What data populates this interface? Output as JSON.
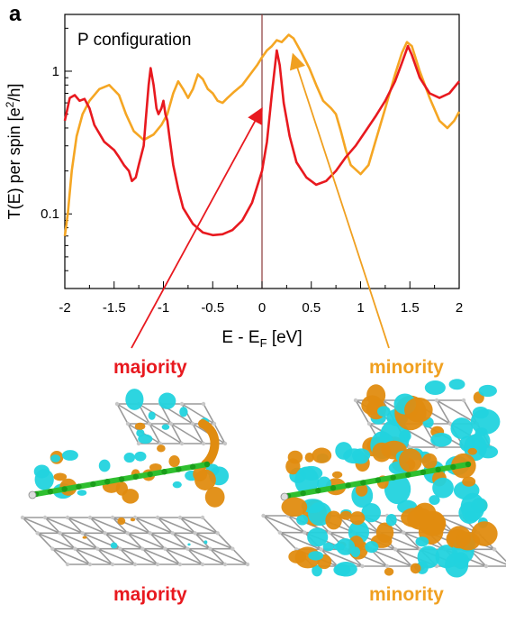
{
  "panel_label": "a",
  "colors": {
    "majority": "#e8191f",
    "minority": "#f5a623",
    "orbital_cyan": "#22d3de",
    "orbital_orange": "#e08c10",
    "atom_gray": "#c8c8c8",
    "carbon_green": "#2fbf2f"
  },
  "labels": {
    "majority_top": "majority",
    "minority_top": "minority",
    "majority_bottom": "majority",
    "minority_bottom": "minority"
  },
  "chart_data": {
    "type": "line",
    "title": "",
    "annotation": "P configuration",
    "xlabel": "E - E",
    "xlabel_sub": "F",
    "xlabel_unit": " [eV]",
    "ylabel": "T(E) per spin [e",
    "ylabel_sup": "2",
    "ylabel_unit": "/h]",
    "x_ticks": [
      -2,
      -1.5,
      -1,
      -0.5,
      0,
      0.5,
      1,
      1.5,
      2
    ],
    "x_tick_labels": [
      "-2",
      "-1.5",
      "-1",
      "-0.5",
      "0",
      "0.5",
      "1",
      "1.5",
      "2"
    ],
    "y_ticks": [
      0.1,
      1
    ],
    "y_tick_labels": [
      "0.1",
      "1"
    ],
    "xlim": [
      -2,
      2
    ],
    "ylim": [
      0.03,
      2.5
    ],
    "yscale": "log",
    "vline_x": 0,
    "series": [
      {
        "name": "majority",
        "points": [
          [
            -2.0,
            0.45
          ],
          [
            -1.95,
            0.65
          ],
          [
            -1.9,
            0.68
          ],
          [
            -1.85,
            0.62
          ],
          [
            -1.8,
            0.64
          ],
          [
            -1.75,
            0.55
          ],
          [
            -1.7,
            0.42
          ],
          [
            -1.6,
            0.32
          ],
          [
            -1.5,
            0.28
          ],
          [
            -1.45,
            0.25
          ],
          [
            -1.4,
            0.22
          ],
          [
            -1.35,
            0.2
          ],
          [
            -1.32,
            0.17
          ],
          [
            -1.28,
            0.18
          ],
          [
            -1.25,
            0.22
          ],
          [
            -1.2,
            0.3
          ],
          [
            -1.18,
            0.45
          ],
          [
            -1.15,
            0.8
          ],
          [
            -1.13,
            1.05
          ],
          [
            -1.1,
            0.8
          ],
          [
            -1.07,
            0.55
          ],
          [
            -1.05,
            0.5
          ],
          [
            -1.02,
            0.55
          ],
          [
            -1.0,
            0.62
          ],
          [
            -0.98,
            0.5
          ],
          [
            -0.96,
            0.45
          ],
          [
            -0.94,
            0.35
          ],
          [
            -0.9,
            0.22
          ],
          [
            -0.85,
            0.15
          ],
          [
            -0.8,
            0.11
          ],
          [
            -0.7,
            0.085
          ],
          [
            -0.6,
            0.074
          ],
          [
            -0.5,
            0.071
          ],
          [
            -0.4,
            0.072
          ],
          [
            -0.3,
            0.077
          ],
          [
            -0.2,
            0.09
          ],
          [
            -0.1,
            0.12
          ],
          [
            0.0,
            0.2
          ],
          [
            0.05,
            0.32
          ],
          [
            0.1,
            0.7
          ],
          [
            0.15,
            1.4
          ],
          [
            0.18,
            1.1
          ],
          [
            0.22,
            0.6
          ],
          [
            0.28,
            0.35
          ],
          [
            0.35,
            0.23
          ],
          [
            0.45,
            0.18
          ],
          [
            0.55,
            0.16
          ],
          [
            0.65,
            0.17
          ],
          [
            0.75,
            0.2
          ],
          [
            0.85,
            0.25
          ],
          [
            0.95,
            0.3
          ],
          [
            1.05,
            0.38
          ],
          [
            1.15,
            0.48
          ],
          [
            1.25,
            0.62
          ],
          [
            1.35,
            0.85
          ],
          [
            1.42,
            1.15
          ],
          [
            1.48,
            1.5
          ],
          [
            1.52,
            1.3
          ],
          [
            1.6,
            0.9
          ],
          [
            1.7,
            0.7
          ],
          [
            1.8,
            0.65
          ],
          [
            1.9,
            0.7
          ],
          [
            2.0,
            0.85
          ]
        ]
      },
      {
        "name": "minority",
        "points": [
          [
            -2.0,
            0.07
          ],
          [
            -1.97,
            0.1
          ],
          [
            -1.93,
            0.2
          ],
          [
            -1.88,
            0.35
          ],
          [
            -1.82,
            0.5
          ],
          [
            -1.75,
            0.62
          ],
          [
            -1.65,
            0.75
          ],
          [
            -1.55,
            0.8
          ],
          [
            -1.45,
            0.68
          ],
          [
            -1.38,
            0.5
          ],
          [
            -1.3,
            0.38
          ],
          [
            -1.2,
            0.33
          ],
          [
            -1.1,
            0.36
          ],
          [
            -1.02,
            0.42
          ],
          [
            -0.96,
            0.5
          ],
          [
            -0.9,
            0.7
          ],
          [
            -0.85,
            0.85
          ],
          [
            -0.8,
            0.75
          ],
          [
            -0.75,
            0.65
          ],
          [
            -0.7,
            0.75
          ],
          [
            -0.65,
            0.95
          ],
          [
            -0.6,
            0.88
          ],
          [
            -0.55,
            0.75
          ],
          [
            -0.5,
            0.7
          ],
          [
            -0.45,
            0.62
          ],
          [
            -0.4,
            0.6
          ],
          [
            -0.35,
            0.65
          ],
          [
            -0.28,
            0.72
          ],
          [
            -0.2,
            0.8
          ],
          [
            -0.12,
            0.95
          ],
          [
            -0.05,
            1.1
          ],
          [
            0.0,
            1.25
          ],
          [
            0.05,
            1.4
          ],
          [
            0.1,
            1.5
          ],
          [
            0.15,
            1.65
          ],
          [
            0.2,
            1.6
          ],
          [
            0.27,
            1.8
          ],
          [
            0.32,
            1.7
          ],
          [
            0.4,
            1.35
          ],
          [
            0.48,
            1.05
          ],
          [
            0.55,
            0.8
          ],
          [
            0.62,
            0.62
          ],
          [
            0.7,
            0.55
          ],
          [
            0.75,
            0.5
          ],
          [
            0.8,
            0.38
          ],
          [
            0.85,
            0.28
          ],
          [
            0.9,
            0.22
          ],
          [
            1.0,
            0.19
          ],
          [
            1.08,
            0.22
          ],
          [
            1.15,
            0.32
          ],
          [
            1.25,
            0.55
          ],
          [
            1.35,
            0.95
          ],
          [
            1.42,
            1.35
          ],
          [
            1.47,
            1.6
          ],
          [
            1.52,
            1.5
          ],
          [
            1.6,
            1.0
          ],
          [
            1.7,
            0.65
          ],
          [
            1.8,
            0.45
          ],
          [
            1.88,
            0.4
          ],
          [
            1.95,
            0.45
          ],
          [
            2.0,
            0.52
          ]
        ]
      }
    ]
  }
}
